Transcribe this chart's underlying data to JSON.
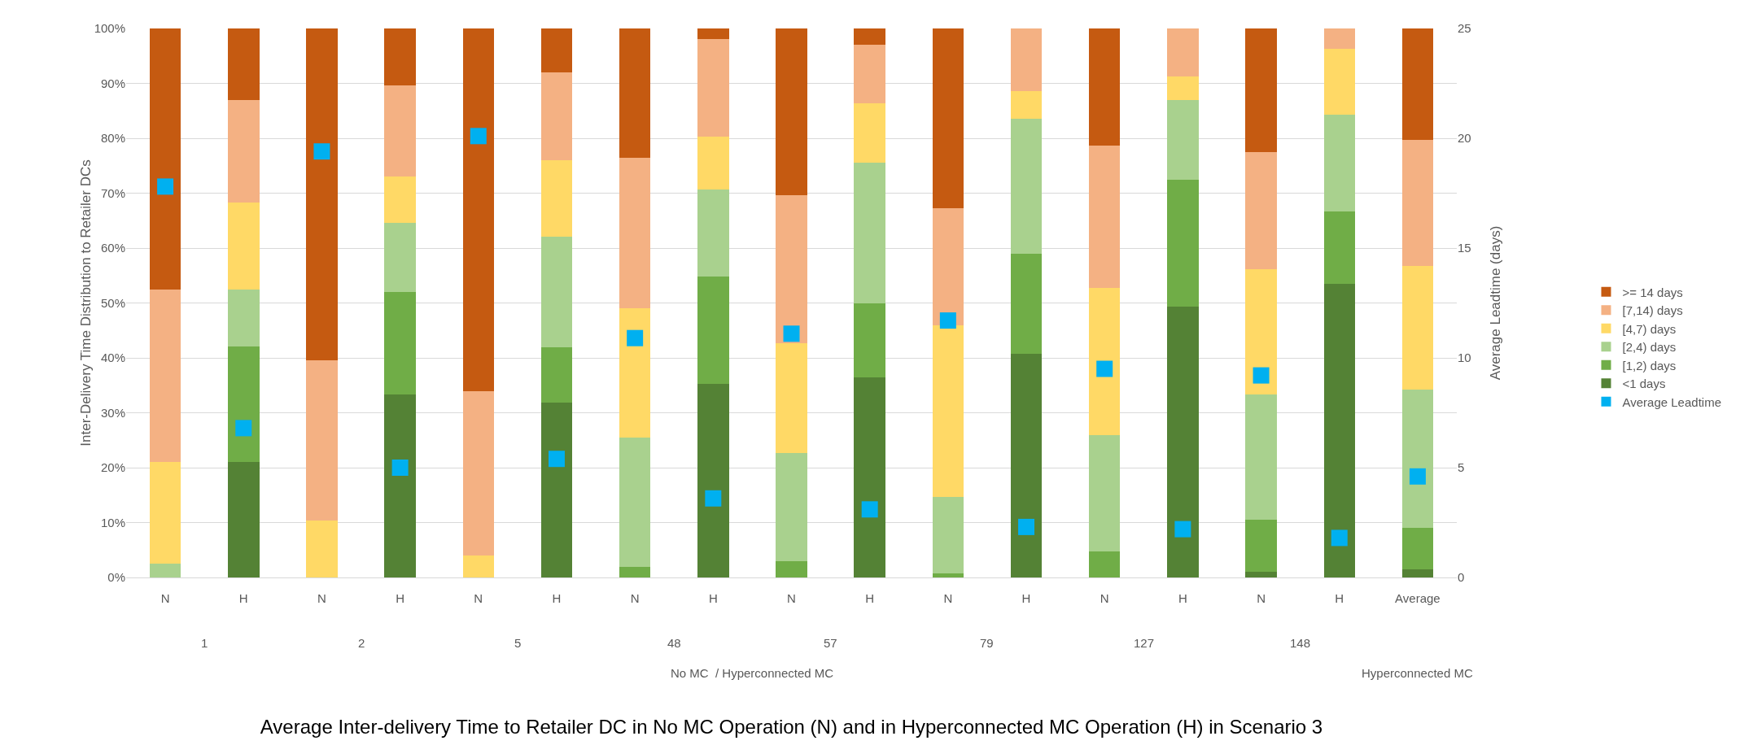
{
  "chart_data": {
    "type": "bar",
    "stacked": true,
    "title": "Average Inter-delivery Time to Retailer DC in No MC Operation (N) and in Hyperconnected MC Operation (H) in Scenario 3",
    "ylabel": "Inter-Delivery Time Distribution to Retailer DCs",
    "y2label": "Average Leadtime (days)",
    "categories": [
      "N",
      "H",
      "N",
      "H",
      "N",
      "H",
      "N",
      "H",
      "N",
      "H",
      "N",
      "H",
      "N",
      "H",
      "N",
      "H",
      "Average"
    ],
    "annotations": [
      "1",
      "2",
      "5",
      "48",
      "57",
      "79",
      "127",
      "148",
      "No MC  / Hyperconnected MC",
      "Hyperconnected MC"
    ],
    "series": [
      {
        "name": "<1 days",
        "color": "#548235",
        "values": [
          0,
          21,
          0,
          33.3,
          0,
          31.9,
          0,
          35.3,
          0,
          36.4,
          0,
          40.8,
          0,
          49.3,
          1.1,
          53.5,
          1.5
        ]
      },
      {
        "name": "[1,2) days",
        "color": "#70ad47",
        "values": [
          0,
          21.1,
          0,
          18.7,
          0,
          10,
          2,
          19.5,
          3,
          13.6,
          0.7,
          18.2,
          4.8,
          23.1,
          9.4,
          13.1,
          7.5
        ]
      },
      {
        "name": "[2,4) days",
        "color": "#a9d18e",
        "values": [
          2.5,
          10.4,
          0,
          12.6,
          0,
          20.2,
          23.5,
          15.9,
          19.7,
          25.6,
          14,
          24.6,
          21.2,
          14.6,
          22.8,
          17.7,
          25.2
        ]
      },
      {
        "name": "[4,7) days",
        "color": "#ffd966",
        "values": [
          18.5,
          15.8,
          10.4,
          8.4,
          4,
          13.9,
          23.5,
          9.6,
          20,
          10.8,
          31.3,
          5,
          26.7,
          4.3,
          22.9,
          12,
          22.5
        ]
      },
      {
        "name": "[7,14) days",
        "color": "#f4b183",
        "values": [
          31.5,
          18.6,
          29.2,
          16.6,
          29.9,
          16,
          27.4,
          17.8,
          27,
          10.6,
          21.2,
          11.4,
          26,
          8.7,
          21.3,
          3.7,
          23
        ]
      },
      {
        "name": ">= 14 days",
        "color": "#c55a11",
        "values": [
          47.5,
          13.1,
          60.4,
          10.4,
          66.1,
          8,
          23.6,
          1.9,
          30.3,
          3,
          32.8,
          0,
          21.3,
          0,
          22.5,
          0,
          20.3
        ]
      },
      {
        "name": "Average Leadtime",
        "color": "#00b0f0",
        "type": "scatter",
        "marker": "square",
        "axis": "y2",
        "values": [
          17.8,
          6.8,
          19.4,
          5,
          20.1,
          5.4,
          10.9,
          3.6,
          11.1,
          3.1,
          11.7,
          2.3,
          9.5,
          2.2,
          9.2,
          1.8,
          4.6
        ]
      }
    ],
    "ylim": [
      0,
      100
    ],
    "yticks": [
      {
        "value": 0,
        "label": "0%"
      },
      {
        "value": 10,
        "label": "10%"
      },
      {
        "value": 20,
        "label": "20%"
      },
      {
        "value": 30,
        "label": "30%"
      },
      {
        "value": 40,
        "label": "40%"
      },
      {
        "value": 50,
        "label": "50%"
      },
      {
        "value": 60,
        "label": "60%"
      },
      {
        "value": 70,
        "label": "70%"
      },
      {
        "value": 80,
        "label": "80%"
      },
      {
        "value": 90,
        "label": "90%"
      },
      {
        "value": 100,
        "label": "100%"
      }
    ],
    "y2lim": [
      0,
      25
    ],
    "y2ticks": [
      0,
      5,
      10,
      15,
      20,
      25
    ],
    "grid": "y",
    "legend": "right"
  }
}
